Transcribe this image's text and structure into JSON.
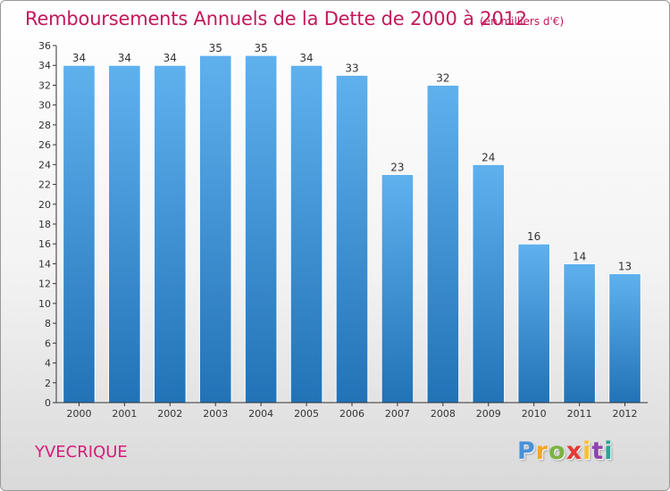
{
  "chart_data": {
    "type": "bar",
    "title": "Remboursements Annuels de la Dette de 2000 à 2012",
    "subtitle": "(en milliers d'€)",
    "categories": [
      "2000",
      "2001",
      "2002",
      "2003",
      "2004",
      "2005",
      "2006",
      "2007",
      "2008",
      "2009",
      "2010",
      "2011",
      "2012"
    ],
    "values": [
      34,
      34,
      34,
      35,
      35,
      34,
      33,
      23,
      32,
      24,
      16,
      14,
      13
    ],
    "ylim": [
      0,
      36
    ],
    "yticks": [
      0,
      2,
      4,
      6,
      8,
      10,
      12,
      14,
      16,
      18,
      20,
      22,
      24,
      26,
      28,
      30,
      32,
      34,
      36
    ],
    "grid": false,
    "data_labels": true,
    "bar_color": "#3a8fd6"
  },
  "location": "YVECRIQUE",
  "logo": {
    "letters": [
      "P",
      "r",
      "o",
      "x",
      "i",
      "t",
      "i"
    ],
    "colors": [
      "#4a90d9",
      "#f5a623",
      "#7cb342",
      "#e53935",
      "#fbc02d",
      "#8e44ad",
      "#26a69a"
    ]
  },
  "colors": {
    "title": "#c2185b",
    "axis": "#333333"
  }
}
